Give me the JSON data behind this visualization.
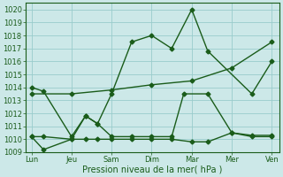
{
  "background_color": "#cce8e8",
  "grid_color": "#99cccc",
  "line_color": "#1a5c1a",
  "marker": "D",
  "marker_size": 2.5,
  "line_width": 1.0,
  "xlabel": "Pression niveau de la mer( hPa )",
  "ylim": [
    1009,
    1020.5
  ],
  "yticks": [
    1009,
    1010,
    1011,
    1012,
    1013,
    1014,
    1015,
    1016,
    1017,
    1018,
    1019,
    1020
  ],
  "x_labels": [
    "Lun",
    "Jeu",
    "Sam",
    "Dim",
    "Mar",
    "Mer",
    "Ven"
  ],
  "x_tick_pos": [
    0,
    1,
    2,
    3,
    4,
    5,
    6
  ],
  "line1_x": [
    0.0,
    0.3,
    1.0,
    1.35,
    1.65,
    2.0,
    2.5,
    3.0,
    3.5,
    4.0,
    4.4,
    5.5,
    6.0
  ],
  "line1_y": [
    1014.0,
    1013.7,
    1010.2,
    1011.8,
    1011.2,
    1013.5,
    1017.5,
    1018.0,
    1017.0,
    1020.0,
    1016.8,
    1013.5,
    1016.0
  ],
  "line2_x": [
    0.0,
    0.3,
    1.0,
    1.35,
    1.65,
    2.0,
    2.5,
    3.0,
    3.5,
    3.8,
    4.4,
    5.0,
    5.5,
    6.0
  ],
  "line2_y": [
    1010.2,
    1009.2,
    1010.0,
    1011.8,
    1011.2,
    1010.2,
    1010.2,
    1010.2,
    1010.2,
    1013.5,
    1013.5,
    1010.5,
    1010.3,
    1010.3
  ],
  "line3_x": [
    0.0,
    0.3,
    1.0,
    1.35,
    1.65,
    2.0,
    2.5,
    3.0,
    3.5,
    4.0,
    4.4,
    5.0,
    5.5,
    6.0
  ],
  "line3_y": [
    1010.2,
    1010.2,
    1010.0,
    1010.0,
    1010.0,
    1010.0,
    1010.0,
    1010.0,
    1010.0,
    1009.8,
    1009.8,
    1010.5,
    1010.2,
    1010.2
  ],
  "line4_x": [
    0.0,
    1.0,
    2.0,
    3.0,
    4.0,
    5.0,
    6.0
  ],
  "line4_y": [
    1013.5,
    1013.5,
    1013.8,
    1014.2,
    1014.5,
    1015.5,
    1017.5
  ]
}
